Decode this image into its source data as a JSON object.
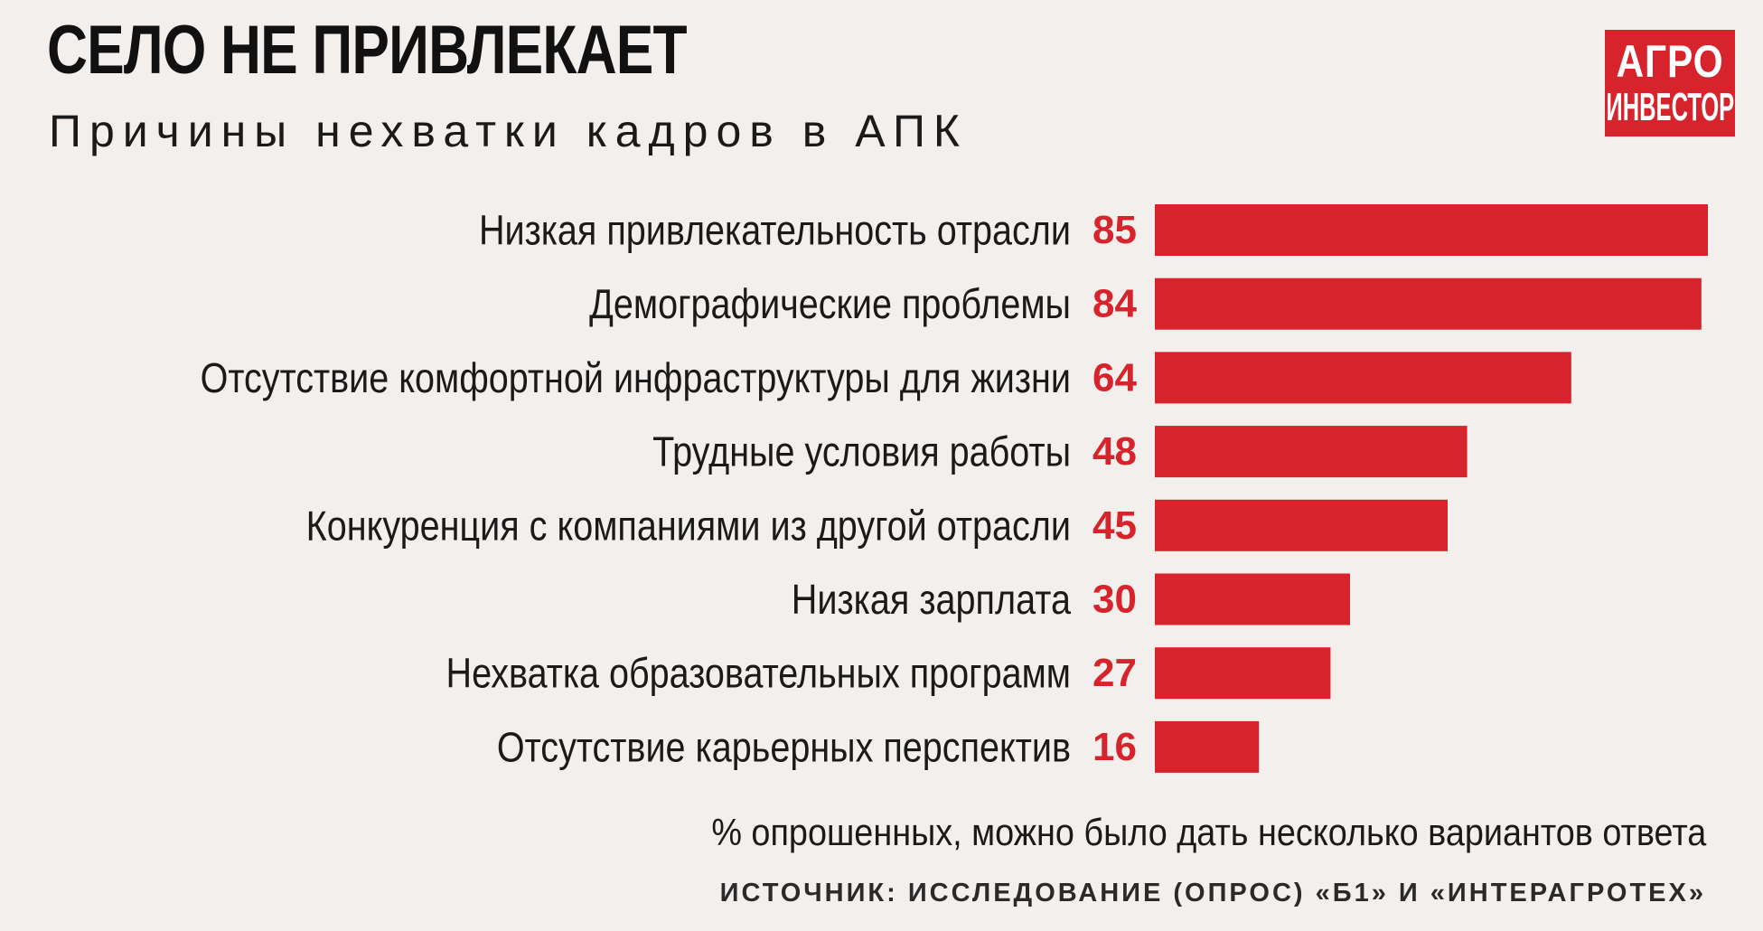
{
  "header": {
    "title": "СЕЛО НЕ ПРИВЛЕКАЕТ",
    "subtitle": "Причины нехватки кадров в АПК"
  },
  "logo": {
    "line1": "АГРО",
    "line2": "ИНВЕСТОР"
  },
  "footer": {
    "note": "% опрошенных, можно было дать несколько вариантов ответа",
    "source": "ИСТОЧНИК: ИССЛЕДОВАНИЕ (ОПРОС) «Б1» И «ИНТЕРАГРОТЕХ»"
  },
  "colors": {
    "bar": "#d7232c",
    "value_label": "#d7232c",
    "background": "#f2efec"
  },
  "chart_data": {
    "type": "bar",
    "orientation": "horizontal",
    "title": "СЕЛО НЕ ПРИВЛЕКАЕТ",
    "subtitle": "Причины нехватки кадров в АПК",
    "categories": [
      "Низкая привлекательность отрасли",
      "Демографические проблемы",
      "Отсутствие комфортной инфраструктуры для жизни",
      "Трудные условия работы",
      "Конкуренция с компаниями из другой отрасли",
      "Низкая зарплата",
      "Нехватка образовательных программ",
      "Отсутствие карьерных перспектив"
    ],
    "values": [
      85,
      84,
      64,
      48,
      45,
      30,
      27,
      16
    ],
    "xlim": [
      0,
      85
    ],
    "grid": false,
    "legend": "none",
    "data_labels": true
  }
}
